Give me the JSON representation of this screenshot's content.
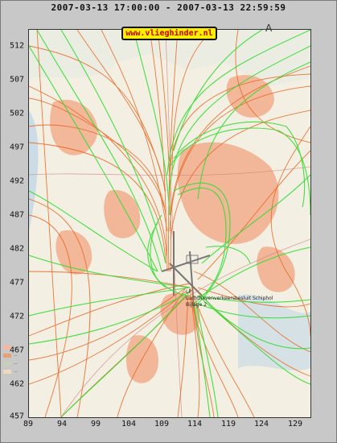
{
  "header": {
    "title": "2007-03-13 17:00:00 - 2007-03-13 22:59:59"
  },
  "badge": {
    "text": "www.vlieghinder.nl"
  },
  "axes": {
    "y_ticks": [
      "512",
      "507",
      "502",
      "497",
      "492",
      "487",
      "482",
      "477",
      "472",
      "467",
      "462",
      "457"
    ],
    "x_ticks": [
      "89",
      "94",
      "99",
      "104",
      "109",
      "114",
      "119",
      "124",
      "129"
    ]
  },
  "map": {
    "north_marker": "A",
    "airport_label_lines": [
      "LP",
      "Luchthavenverkeersbesluit Schiphol",
      "Bijlage 2"
    ],
    "legend_rows": [
      {
        "label": "...",
        "color": "#f4b8a0"
      },
      {
        "label": "...",
        "color": "#e8a070"
      },
      {
        "label": "...",
        "color": "#c8d0b8"
      },
      {
        "label": "...",
        "color": "#f0d8c0"
      }
    ]
  },
  "colors": {
    "frame": "#c8c8c8",
    "map_background": "#f3efe2",
    "urban": "#f2ad8c",
    "water": "#b9d4e8",
    "arrivals_track": "#33dd33",
    "departures_track": "#e8641e",
    "badge_bg": "#ffee00",
    "badge_text": "#c00000"
  }
}
